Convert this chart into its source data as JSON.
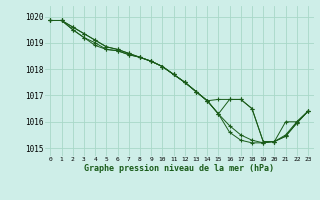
{
  "title": "Graphe pression niveau de la mer (hPa)",
  "bg_color": "#ceeee8",
  "grid_color": "#a8d8c8",
  "line_color": "#1a5c1a",
  "marker": "+",
  "x_labels": [
    "0",
    "1",
    "2",
    "3",
    "4",
    "5",
    "6",
    "7",
    "8",
    "9",
    "10",
    "11",
    "12",
    "13",
    "14",
    "15",
    "16",
    "17",
    "18",
    "19",
    "20",
    "21",
    "22",
    "23"
  ],
  "ylim": [
    1014.7,
    1020.4
  ],
  "yticks": [
    1015,
    1016,
    1017,
    1018,
    1019,
    1020
  ],
  "series": [
    [
      1019.85,
      1019.85,
      1019.6,
      1019.35,
      1019.1,
      1018.85,
      1018.75,
      1018.6,
      1018.45,
      1018.3,
      1018.1,
      1017.8,
      1017.5,
      1017.15,
      1016.8,
      1016.3,
      1015.85,
      1015.5,
      1015.3,
      1015.2,
      1015.25,
      1015.45,
      1015.95,
      1016.4
    ],
    [
      1019.85,
      1019.85,
      1019.6,
      1019.35,
      1019.1,
      1018.85,
      1018.75,
      1018.6,
      1018.45,
      1018.3,
      1018.1,
      1017.8,
      1017.5,
      1017.15,
      1016.8,
      1016.3,
      1015.6,
      1015.3,
      1015.2,
      1015.2,
      1015.25,
      1015.45,
      1015.95,
      1016.4
    ],
    [
      1019.85,
      1019.85,
      1019.5,
      1019.2,
      1019.0,
      1018.75,
      1018.7,
      1018.55,
      1018.45,
      1018.3,
      1018.1,
      1017.8,
      1017.5,
      1017.15,
      1016.8,
      1016.3,
      1016.85,
      1016.85,
      1016.5,
      1015.25,
      1015.25,
      1015.5,
      1016.0,
      1016.4
    ],
    [
      1019.85,
      1019.85,
      1019.5,
      1019.2,
      1018.9,
      1018.75,
      1018.7,
      1018.55,
      1018.45,
      1018.3,
      1018.1,
      1017.8,
      1017.5,
      1017.15,
      1016.8,
      1016.85,
      1016.85,
      1016.85,
      1016.5,
      1015.25,
      1015.25,
      1016.0,
      1016.0,
      1016.4
    ]
  ]
}
